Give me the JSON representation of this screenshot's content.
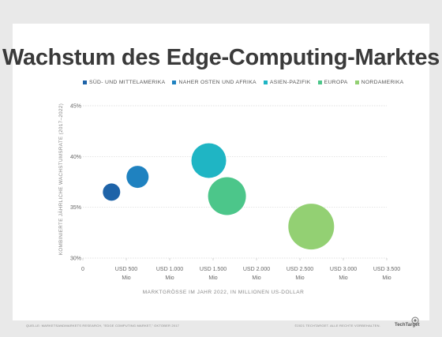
{
  "chart_data": {
    "type": "scatter",
    "title": "Wachstum des Edge-Computing-Marktes",
    "xlabel": "MARKTGRÖSSE IM JAHR 2022, IN MILLIONEN US-DOLLAR",
    "ylabel": "KOMBINIERTE JÄHRLICHE WACHSTUMSRATE (2017–2022)",
    "xlim": [
      0,
      3500
    ],
    "ylim": [
      30,
      45
    ],
    "x_ticks": [
      {
        "value": 0,
        "line1": "0",
        "line2": ""
      },
      {
        "value": 500,
        "line1": "USD 500",
        "line2": "Mio"
      },
      {
        "value": 1000,
        "line1": "USD 1.000",
        "line2": "Mio"
      },
      {
        "value": 1500,
        "line1": "USD 1.500",
        "line2": "Mio"
      },
      {
        "value": 2000,
        "line1": "USD 2.000",
        "line2": "Mio"
      },
      {
        "value": 2500,
        "line1": "USD 2.500",
        "line2": "Mio"
      },
      {
        "value": 3000,
        "line1": "USD 3.000",
        "line2": "Mio"
      },
      {
        "value": 3500,
        "line1": "USD 3.500",
        "line2": "Mio"
      }
    ],
    "y_ticks": [
      {
        "value": 30,
        "label": "30%"
      },
      {
        "value": 35,
        "label": "35%"
      },
      {
        "value": 40,
        "label": "40%"
      },
      {
        "value": 45,
        "label": "45%"
      }
    ],
    "grid": true,
    "legend_position": "top",
    "series": [
      {
        "name": "SÜD- UND MITTELAMERIKA",
        "color": "#1e63a8",
        "x": 330,
        "y": 36.5,
        "size": 11
      },
      {
        "name": "NAHER OSTEN UND AFRIKA",
        "color": "#1f82c0",
        "x": 630,
        "y": 38.0,
        "size": 14
      },
      {
        "name": "ASIEN-PAZIFIK",
        "color": "#1fb5c4",
        "x": 1450,
        "y": 39.6,
        "size": 22
      },
      {
        "name": "EUROPA",
        "color": "#4cc68a",
        "x": 1660,
        "y": 36.1,
        "size": 24
      },
      {
        "name": "NORDAMERIKA",
        "color": "#93d073",
        "x": 2630,
        "y": 33.1,
        "size": 29
      }
    ]
  },
  "footer": {
    "source": "QUELLE: MARKETSANDMARKETS RESEARCH, \"EDGE COMPUTING MARKET,\" OKTOBER 2017",
    "copyright": "©2021 TECHTARGET. ALLE RECHTE VORBEHALTEN.",
    "brand": "TechTarget"
  }
}
